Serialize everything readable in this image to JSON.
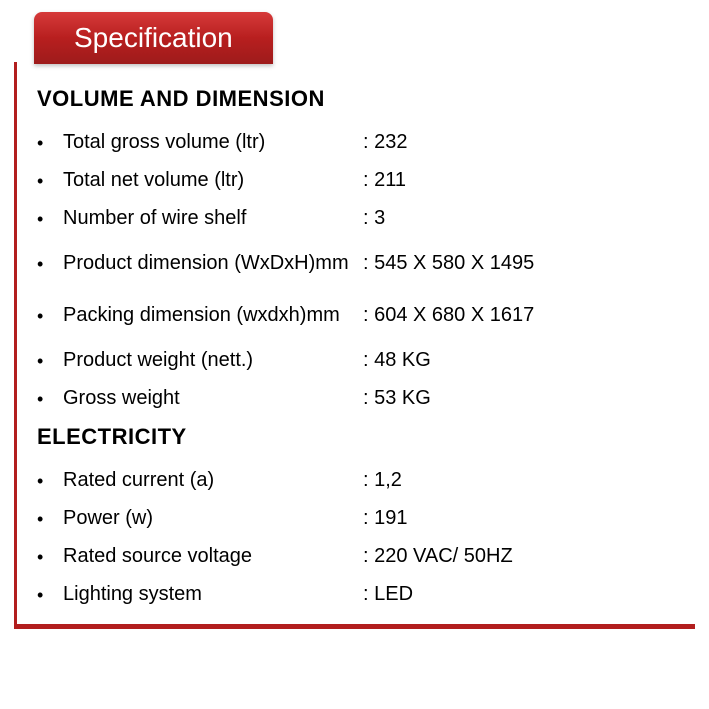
{
  "tab_title": "Specification",
  "colors": {
    "accent": "#b21e1e",
    "tab_gradient_top": "#d63a3a",
    "tab_gradient_mid": "#b81f1f",
    "tab_gradient_bottom": "#9e1b1b",
    "text": "#000000",
    "tab_text": "#ffffff",
    "background": "#ffffff"
  },
  "typography": {
    "tab_fontsize": 28,
    "heading_fontsize": 22,
    "body_fontsize": 20
  },
  "sections": [
    {
      "heading": "VOLUME AND DIMENSION",
      "rows": [
        {
          "label": "Total gross volume (ltr)",
          "value": ": 232",
          "wide": false
        },
        {
          "label": "Total net volume (ltr)",
          "value": ": 211",
          "wide": false
        },
        {
          "label": "Number of wire shelf",
          "value": ": 3",
          "wide": false
        },
        {
          "label": "Product dimension (WxDxH)mm",
          "value": ": 545 X 580 X 1495",
          "wide": true
        },
        {
          "label": "Packing dimension (wxdxh)mm",
          "value": ": 604 X 680 X 1617",
          "wide": true
        },
        {
          "label": "Product weight (nett.)",
          "value": ": 48 KG",
          "wide": false
        },
        {
          "label": "Gross weight",
          "value": ": 53 KG",
          "wide": false
        }
      ]
    },
    {
      "heading": "ELECTRICITY",
      "rows": [
        {
          "label": "Rated current (a)",
          "value": ": 1,2",
          "wide": false
        },
        {
          "label": "Power (w)",
          "value": ": 191",
          "wide": false
        },
        {
          "label": "Rated source voltage",
          "value": ": 220 VAC/ 50HZ",
          "wide": false
        },
        {
          "label": "Lighting system",
          "value": ": LED",
          "wide": false
        }
      ]
    }
  ]
}
